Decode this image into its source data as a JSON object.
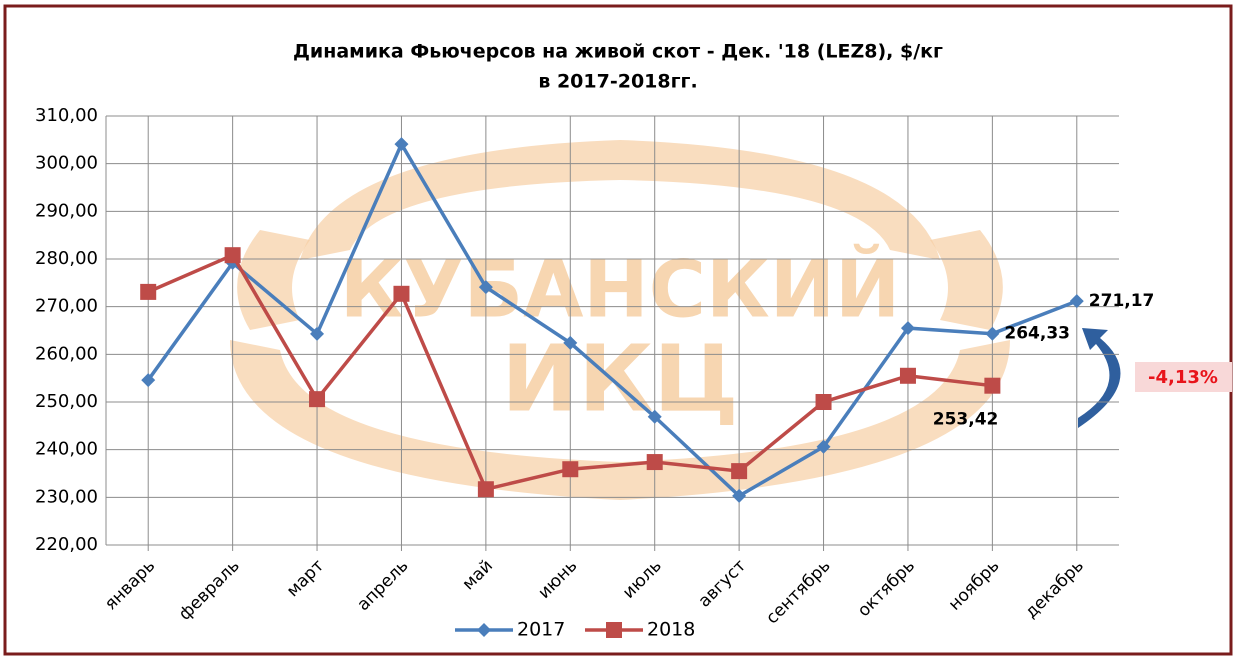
{
  "chart_data": {
    "type": "line",
    "title": "Динамика Фьючерсов на живой скот - Дек. '18 (LEZ8), $/кг",
    "subtitle": "в 2017-2018гг.",
    "watermark": [
      "КУБАНСКИЙ",
      "ИКЦ"
    ],
    "annotation": "-4,13%",
    "categories": [
      "январь",
      "февраль",
      "март",
      "апрель",
      "май",
      "июнь",
      "июль",
      "август",
      "сентябрь",
      "октябрь",
      "ноябрь",
      "декабрь"
    ],
    "series": [
      {
        "name": "2017",
        "color": "#4a7ebb",
        "marker": "diamond",
        "values": [
          254.6,
          279.2,
          264.3,
          304.1,
          274.1,
          262.4,
          246.9,
          230.3,
          240.6,
          265.5,
          264.33,
          271.17
        ],
        "value_labels": [
          null,
          null,
          null,
          null,
          null,
          null,
          null,
          null,
          null,
          null,
          "264,33",
          "271,17"
        ]
      },
      {
        "name": "2018",
        "color": "#be4b48",
        "marker": "square",
        "values": [
          273.1,
          280.8,
          250.6,
          272.7,
          231.7,
          235.9,
          237.4,
          235.5,
          250.0,
          255.5,
          253.42,
          null
        ],
        "value_labels": [
          null,
          null,
          null,
          null,
          null,
          null,
          null,
          null,
          null,
          null,
          "253,42",
          null
        ]
      }
    ],
    "ylim": [
      220,
      310
    ],
    "yticks": [
      {
        "value": 220,
        "label": "220,00"
      },
      {
        "value": 230,
        "label": "230,00"
      },
      {
        "value": 240,
        "label": "240,00"
      },
      {
        "value": 250,
        "label": "250,00"
      },
      {
        "value": 260,
        "label": "260,00"
      },
      {
        "value": 270,
        "label": "270,00"
      },
      {
        "value": 280,
        "label": "280,00"
      },
      {
        "value": 290,
        "label": "290,00"
      },
      {
        "value": 300,
        "label": "300,00"
      },
      {
        "value": 310,
        "label": "310,00"
      }
    ],
    "grid": true,
    "legend": "bottom"
  }
}
